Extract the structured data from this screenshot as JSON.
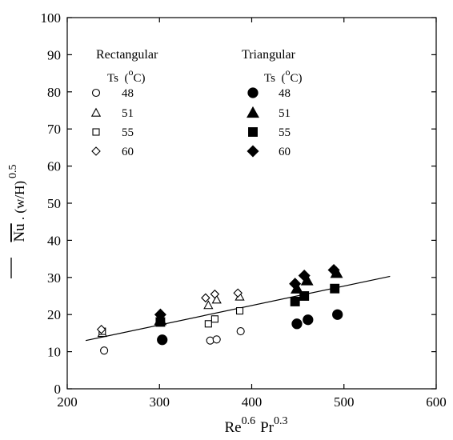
{
  "chart_data": {
    "type": "scatter",
    "xlabel": {
      "base1": "Re",
      "exp1": "0.6",
      "base2": "Pr",
      "exp2": "0.3"
    },
    "ylabel": {
      "main": "Nu",
      "mid": " . (w/H)",
      "exp": "0.5"
    },
    "xlim": [
      200,
      600
    ],
    "ylim": [
      0,
      100
    ],
    "xticks": [
      200,
      300,
      400,
      500,
      600
    ],
    "yticks": [
      0,
      10,
      20,
      30,
      40,
      50,
      60,
      70,
      80,
      90,
      100
    ],
    "grid": false,
    "legend": {
      "placement": "top",
      "groups": [
        {
          "title": "Rectangular",
          "ts_prefix": "Ts",
          "ts_unit_open": " (",
          "ts_sup": "o",
          "ts_unit_close": "C)",
          "fill": "open"
        },
        {
          "title": "Triangular",
          "ts_prefix": "Ts",
          "ts_unit_open": " (",
          "ts_sup": "o",
          "ts_unit_close": "C)",
          "fill": "filled"
        }
      ]
    },
    "series": [
      {
        "group": "Rectangular",
        "name": "48",
        "marker": "circle",
        "filled": false,
        "points": [
          [
            240,
            10.3
          ],
          [
            355,
            13
          ],
          [
            362,
            13.3
          ],
          [
            388,
            15.5
          ]
        ]
      },
      {
        "group": "Rectangular",
        "name": "51",
        "marker": "triangle",
        "filled": false,
        "points": [
          [
            238,
            15
          ],
          [
            353,
            22.5
          ],
          [
            362,
            24
          ],
          [
            387,
            24.8
          ]
        ]
      },
      {
        "group": "Rectangular",
        "name": "55",
        "marker": "square",
        "filled": false,
        "points": [
          [
            238,
            15.5
          ],
          [
            353,
            17.5
          ],
          [
            360,
            18.8
          ],
          [
            387,
            21
          ]
        ]
      },
      {
        "group": "Rectangular",
        "name": "60",
        "marker": "diamond",
        "filled": false,
        "points": [
          [
            237,
            16
          ],
          [
            350,
            24.5
          ],
          [
            360,
            25.5
          ],
          [
            385,
            25.8
          ]
        ]
      },
      {
        "group": "Triangular",
        "name": "48",
        "marker": "circle",
        "filled": true,
        "points": [
          [
            303,
            13.2
          ],
          [
            449,
            17.5
          ],
          [
            461,
            18.6
          ],
          [
            493,
            20
          ]
        ]
      },
      {
        "group": "Triangular",
        "name": "51",
        "marker": "triangle",
        "filled": true,
        "points": [
          [
            301,
            18.5
          ],
          [
            449,
            27
          ],
          [
            460,
            29.2
          ],
          [
            492,
            31.2
          ]
        ]
      },
      {
        "group": "Triangular",
        "name": "55",
        "marker": "square",
        "filled": true,
        "points": [
          [
            301,
            18
          ],
          [
            447,
            23.5
          ],
          [
            457,
            25
          ],
          [
            490,
            27
          ]
        ]
      },
      {
        "group": "Triangular",
        "name": "60",
        "marker": "diamond",
        "filled": true,
        "points": [
          [
            301,
            20
          ],
          [
            447,
            28.3
          ],
          [
            457,
            30.5
          ],
          [
            489,
            32
          ]
        ]
      }
    ],
    "fit_line": {
      "x": [
        220,
        550
      ],
      "y": [
        13,
        30.3
      ]
    }
  }
}
